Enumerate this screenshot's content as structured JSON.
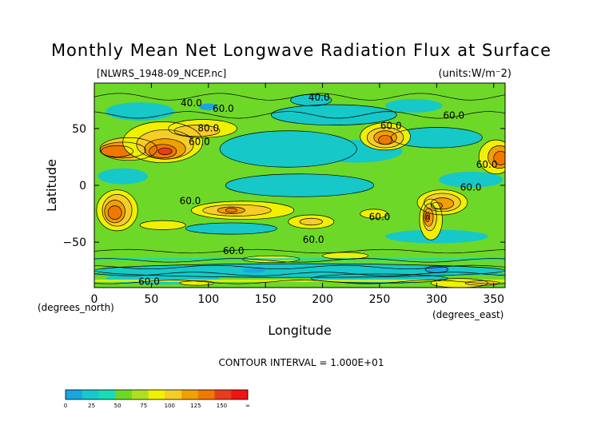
{
  "chart_data": {
    "type": "heatmap",
    "title": "Monthly Mean Net Longwave Radiation Flux at Surface",
    "file_label": "[NLWRS_1948-09_NCEP.nc]",
    "units_label": "(units:W/m⁻2)",
    "xlabel": "Longitude",
    "ylabel": "Latitude",
    "x_unit_label": "(degrees_east)",
    "y_unit_label": "(degrees_north)",
    "xlim": [
      0,
      360
    ],
    "ylim": [
      -90,
      90
    ],
    "x_ticks": [
      0,
      50,
      100,
      150,
      200,
      250,
      300,
      350
    ],
    "y_ticks": [
      50,
      0,
      -50
    ],
    "contour_interval_label": "CONTOUR INTERVAL = 1.000E+01",
    "contour_labels": [
      {
        "text": "40.0",
        "lon": 85,
        "lat": 72
      },
      {
        "text": "60.0",
        "lon": 113,
        "lat": 67
      },
      {
        "text": "40.0",
        "lon": 197,
        "lat": 77
      },
      {
        "text": "60.0",
        "lon": 315,
        "lat": 61
      },
      {
        "text": "80.0",
        "lon": 100,
        "lat": 50
      },
      {
        "text": "60.0",
        "lon": 92,
        "lat": 38
      },
      {
        "text": "60.0",
        "lon": 260,
        "lat": 52
      },
      {
        "text": "60.0",
        "lon": 344,
        "lat": 18
      },
      {
        "text": "60.0",
        "lon": 330,
        "lat": -2
      },
      {
        "text": "60.0",
        "lon": 84,
        "lat": -14
      },
      {
        "text": "60.0",
        "lon": 250,
        "lat": -28
      },
      {
        "text": "60.0",
        "lon": 192,
        "lat": -48
      },
      {
        "text": "60.0",
        "lon": 122,
        "lat": -58
      },
      {
        "text": "60.0",
        "lon": 48,
        "lat": -85
      }
    ],
    "colorbar": {
      "tick_labels": [
        "0",
        "25",
        "50",
        "75",
        "100",
        "125",
        "150",
        "∞"
      ],
      "colors": [
        "#1aa5e0",
        "#16c8c8",
        "#1adcb4",
        "#6ed828",
        "#aee020",
        "#f0f000",
        "#f5cc28",
        "#f0a000",
        "#f07800",
        "#e83c1e",
        "#f01414"
      ]
    }
  }
}
